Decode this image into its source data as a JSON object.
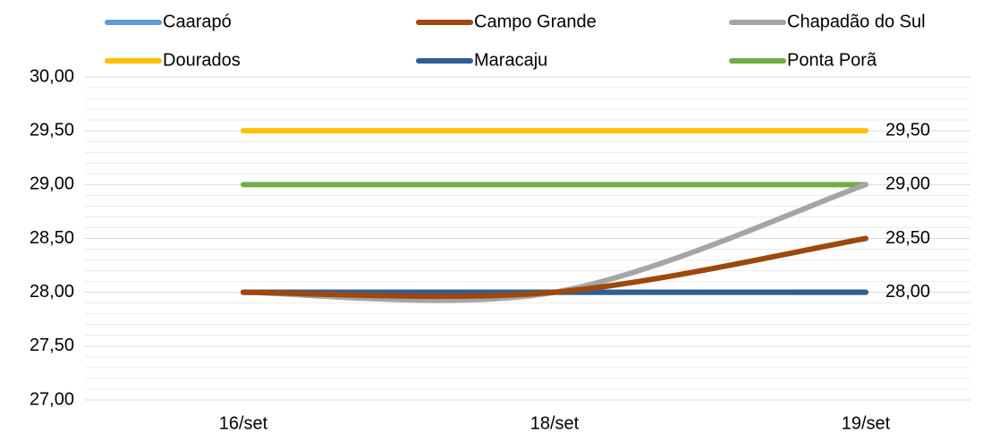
{
  "chart_data": {
    "type": "line",
    "smooth": true,
    "grid": true,
    "legend": "top",
    "categories": [
      "16/set",
      "18/set",
      "19/set"
    ],
    "ylim": [
      27,
      30
    ],
    "yticks": [
      {
        "value": 27,
        "label": "27,00"
      },
      {
        "value": 27.5,
        "label": "27,50"
      },
      {
        "value": 28,
        "label": "28,00"
      },
      {
        "value": 28.5,
        "label": "28,50"
      },
      {
        "value": 29,
        "label": "29,00"
      },
      {
        "value": 29.5,
        "label": "29,50"
      },
      {
        "value": 30,
        "label": "30,00"
      }
    ],
    "series": [
      {
        "name": "Caarapó",
        "color": "#5b9bd5",
        "values": [
          28,
          28,
          28
        ]
      },
      {
        "name": "Campo Grande",
        "color": "#9e480e",
        "values": [
          28,
          28,
          28.5
        ],
        "value_labels": [
          null,
          null,
          "28,50"
        ]
      },
      {
        "name": "Chapadão do Sul",
        "color": "#a5a5a5",
        "values": [
          28,
          28,
          29
        ]
      },
      {
        "name": "Dourados",
        "color": "#ffc000",
        "values": [
          29.5,
          29.5,
          29.5
        ],
        "value_labels": [
          null,
          null,
          "29,50"
        ]
      },
      {
        "name": "Maracaju",
        "color": "#2e5e95",
        "values": [
          28,
          28,
          28
        ],
        "value_labels": [
          null,
          null,
          "28,00"
        ]
      },
      {
        "name": "Ponta Porã",
        "color": "#70ad47",
        "values": [
          29,
          29,
          29
        ],
        "value_labels": [
          null,
          null,
          "29,00"
        ]
      }
    ]
  }
}
